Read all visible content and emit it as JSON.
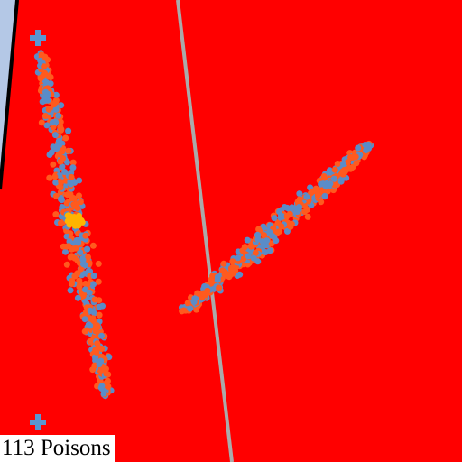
{
  "hud": {
    "poison_count": 113,
    "poison_label": "113 Poisons"
  },
  "colors": {
    "background": "#ff0000",
    "outside_area": "#b4c8e6",
    "boundary_line": "#000000",
    "divider_line": "#aaaaaa",
    "particle_orange": "#ff5a1e",
    "particle_blue": "#5a8cc8",
    "particle_yellow": "#ffb400",
    "marker_cross": "#5a96d2",
    "hud_background": "#ffffff",
    "hud_text": "#000000"
  },
  "elements": {
    "markers": [
      "cross-marker",
      "cross-marker"
    ],
    "clusters": [
      "left-particle-cluster",
      "right-particle-cluster"
    ]
  }
}
